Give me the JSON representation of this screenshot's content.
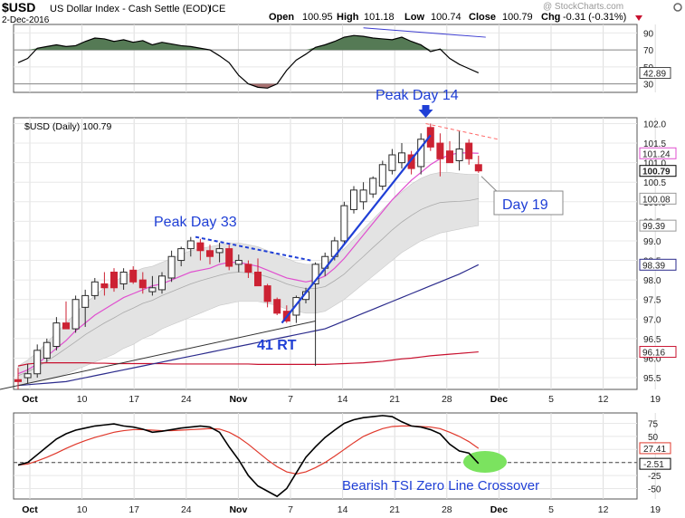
{
  "header": {
    "symbol": "$USD",
    "name": "US Dollar Index - Cash Settle (EOD)",
    "exchange": "ICE",
    "date": "2-Dec-2016",
    "watermark": "@ StockCharts.com",
    "open_label": "Open",
    "open": "100.95",
    "high_label": "High",
    "high": "101.18",
    "low_label": "Low",
    "low": "100.74",
    "close_label": "Close",
    "close": "100.79",
    "chg_label": "Chg",
    "chg": "-0.31 (-0.31%)"
  },
  "price_legend": "$USD (Daily) 100.79",
  "colors": {
    "up": "#2a2a2a",
    "down": "#cc2233",
    "ma_fast": "#e04fcf",
    "ma_mid": "#2b2b8c",
    "ma_slow": "#c8102e",
    "band": "#e3e3e3",
    "annotation": "#1f3fd6",
    "rsi_fill_up": "#557a55",
    "rsi_fill_down": "#a87070",
    "tsi": "#000000",
    "tsi_signal": "#e0392c",
    "crossover_marker": "#7be35f"
  },
  "chart_data": [
    {
      "type": "line",
      "title": "RSI",
      "y_ticks": [
        90,
        70,
        50,
        30
      ],
      "ylim": [
        20,
        100
      ],
      "reference_lines": [
        70,
        30
      ],
      "last_value_label": "42.89",
      "series": [
        {
          "values": [
            55,
            60,
            72,
            74,
            76,
            74,
            75,
            80,
            84,
            83,
            80,
            82,
            79,
            81,
            76,
            79,
            77,
            75,
            74,
            72,
            70,
            63,
            55,
            40,
            30,
            26,
            25,
            30,
            46,
            58,
            65,
            73,
            76,
            80,
            85,
            87,
            86,
            84,
            83,
            82,
            85,
            80,
            76,
            68,
            71,
            60,
            53,
            48,
            43
          ]
        }
      ],
      "annotations": [
        {
          "kind": "downtrend-line",
          "from": [
            36,
            96
          ],
          "to": [
            48,
            85
          ]
        }
      ]
    },
    {
      "type": "candlestick",
      "y_ticks": [
        102.0,
        101.5,
        101.0,
        100.5,
        100.0,
        99.5,
        99.0,
        98.5,
        98.0,
        97.5,
        97.0,
        96.5,
        96.0,
        95.5
      ],
      "ylim": [
        95.2,
        102.15
      ],
      "x_ticks": [
        "Oct",
        "10",
        "17",
        "24",
        "Nov",
        "7",
        "14",
        "21",
        "28",
        "Dec",
        "5",
        "12",
        "19"
      ],
      "bold_x_ticks": [
        "Oct",
        "Nov",
        "Dec"
      ],
      "price_labels": [
        {
          "text": "101.24",
          "value": 101.24,
          "style": "pink"
        },
        {
          "text": "100.79",
          "value": 100.79,
          "style": "black"
        },
        {
          "text": "100.08",
          "value": 100.08,
          "style": "gray"
        },
        {
          "text": "99.39",
          "value": 99.39,
          "style": "gray"
        },
        {
          "text": "98.39",
          "value": 98.39,
          "style": "navy"
        },
        {
          "text": "96.16",
          "value": 96.16,
          "style": "red"
        }
      ],
      "candles": [
        {
          "o": 95.45,
          "h": 95.75,
          "l": 95.2,
          "c": 95.4
        },
        {
          "o": 95.5,
          "h": 95.85,
          "l": 95.35,
          "c": 95.6
        },
        {
          "o": 95.6,
          "h": 96.35,
          "l": 95.5,
          "c": 96.2
        },
        {
          "o": 96.0,
          "h": 96.5,
          "l": 95.9,
          "c": 96.4
        },
        {
          "o": 96.3,
          "h": 97.05,
          "l": 96.2,
          "c": 96.9
        },
        {
          "o": 96.9,
          "h": 97.45,
          "l": 96.75,
          "c": 96.75
        },
        {
          "o": 96.75,
          "h": 97.6,
          "l": 96.65,
          "c": 97.5
        },
        {
          "o": 97.3,
          "h": 97.75,
          "l": 96.8,
          "c": 97.6
        },
        {
          "o": 97.6,
          "h": 98.05,
          "l": 97.5,
          "c": 97.95
        },
        {
          "o": 97.9,
          "h": 98.2,
          "l": 97.6,
          "c": 97.8
        },
        {
          "o": 98.2,
          "h": 98.3,
          "l": 97.7,
          "c": 97.8
        },
        {
          "o": 97.9,
          "h": 98.3,
          "l": 97.75,
          "c": 98.2
        },
        {
          "o": 98.25,
          "h": 98.35,
          "l": 97.9,
          "c": 97.95
        },
        {
          "o": 98.0,
          "h": 98.2,
          "l": 97.65,
          "c": 97.8
        },
        {
          "o": 97.7,
          "h": 98.1,
          "l": 97.6,
          "c": 97.8
        },
        {
          "o": 97.75,
          "h": 98.2,
          "l": 97.65,
          "c": 98.1
        },
        {
          "o": 98.05,
          "h": 98.75,
          "l": 97.95,
          "c": 98.6
        },
        {
          "o": 98.5,
          "h": 98.85,
          "l": 98.35,
          "c": 98.8
        },
        {
          "o": 98.8,
          "h": 99.1,
          "l": 98.6,
          "c": 99.0
        },
        {
          "o": 98.95,
          "h": 99.05,
          "l": 98.5,
          "c": 98.75
        },
        {
          "o": 98.75,
          "h": 98.9,
          "l": 98.4,
          "c": 98.6
        },
        {
          "o": 98.7,
          "h": 98.95,
          "l": 98.45,
          "c": 98.8
        },
        {
          "o": 98.8,
          "h": 98.9,
          "l": 98.25,
          "c": 98.35
        },
        {
          "o": 98.4,
          "h": 98.65,
          "l": 98.2,
          "c": 98.5
        },
        {
          "o": 98.4,
          "h": 98.5,
          "l": 98.05,
          "c": 98.2
        },
        {
          "o": 98.2,
          "h": 98.55,
          "l": 97.85,
          "c": 97.85
        },
        {
          "o": 97.85,
          "h": 97.9,
          "l": 97.3,
          "c": 97.45
        },
        {
          "o": 97.5,
          "h": 97.55,
          "l": 97.1,
          "c": 97.15
        },
        {
          "o": 97.2,
          "h": 97.35,
          "l": 96.9,
          "c": 96.95
        },
        {
          "o": 97.1,
          "h": 97.6,
          "l": 96.9,
          "c": 97.55
        },
        {
          "o": 97.5,
          "h": 97.8,
          "l": 97.4,
          "c": 97.7
        },
        {
          "o": 97.9,
          "h": 98.45,
          "l": 95.8,
          "c": 98.4
        },
        {
          "o": 98.3,
          "h": 98.7,
          "l": 98.1,
          "c": 98.6
        },
        {
          "o": 98.6,
          "h": 99.1,
          "l": 98.5,
          "c": 99.0
        },
        {
          "o": 99.0,
          "h": 100.0,
          "l": 98.9,
          "c": 99.9
        },
        {
          "o": 99.8,
          "h": 100.4,
          "l": 99.7,
          "c": 100.3
        },
        {
          "o": 100.0,
          "h": 100.5,
          "l": 99.8,
          "c": 100.3
        },
        {
          "o": 100.2,
          "h": 100.65,
          "l": 100.1,
          "c": 100.6
        },
        {
          "o": 100.4,
          "h": 101.05,
          "l": 100.3,
          "c": 100.95
        },
        {
          "o": 100.8,
          "h": 101.35,
          "l": 100.7,
          "c": 101.2
        },
        {
          "o": 101.0,
          "h": 101.5,
          "l": 100.85,
          "c": 101.25
        },
        {
          "o": 101.2,
          "h": 101.3,
          "l": 100.7,
          "c": 100.85
        },
        {
          "o": 100.9,
          "h": 101.75,
          "l": 100.7,
          "c": 101.6
        },
        {
          "o": 101.9,
          "h": 102.0,
          "l": 101.3,
          "c": 101.4
        },
        {
          "o": 101.5,
          "h": 101.75,
          "l": 100.65,
          "c": 101.1
        },
        {
          "o": 101.3,
          "h": 101.55,
          "l": 101.0,
          "c": 101.0
        },
        {
          "o": 101.05,
          "h": 101.8,
          "l": 100.8,
          "c": 101.35
        },
        {
          "o": 101.5,
          "h": 101.6,
          "l": 100.95,
          "c": 101.1
        },
        {
          "o": 100.95,
          "h": 101.18,
          "l": 100.74,
          "c": 100.79
        }
      ],
      "ma_fast": [
        95.6,
        95.7,
        95.85,
        96.05,
        96.25,
        96.45,
        96.7,
        96.9,
        97.1,
        97.25,
        97.4,
        97.55,
        97.65,
        97.75,
        97.85,
        97.9,
        98.0,
        98.1,
        98.2,
        98.25,
        98.3,
        98.4,
        98.45,
        98.45,
        98.4,
        98.35,
        98.25,
        98.15,
        98.05,
        98.0,
        97.95,
        98.0,
        98.1,
        98.3,
        98.55,
        98.85,
        99.15,
        99.45,
        99.75,
        100.05,
        100.3,
        100.55,
        100.75,
        100.95,
        101.1,
        101.2,
        101.25,
        101.25,
        101.24
      ],
      "ma_mid": [
        95.3,
        95.32,
        95.34,
        95.36,
        95.38,
        95.4,
        95.45,
        95.5,
        95.55,
        95.6,
        95.65,
        95.7,
        95.75,
        95.8,
        95.85,
        95.9,
        95.95,
        96.0,
        96.05,
        96.1,
        96.15,
        96.2,
        96.25,
        96.3,
        96.35,
        96.4,
        96.45,
        96.5,
        96.55,
        96.6,
        96.65,
        96.7,
        96.75,
        96.85,
        96.95,
        97.05,
        97.15,
        97.25,
        97.35,
        97.45,
        97.55,
        97.65,
        97.75,
        97.85,
        97.95,
        98.05,
        98.15,
        98.27,
        98.39
      ],
      "ma_slow": [
        95.8,
        95.85,
        95.87,
        95.88,
        95.88,
        95.88,
        95.88,
        95.88,
        95.87,
        95.87,
        95.86,
        95.86,
        95.86,
        95.86,
        95.86,
        95.86,
        95.85,
        95.85,
        95.85,
        95.85,
        95.85,
        95.85,
        95.85,
        95.85,
        95.85,
        95.84,
        95.84,
        95.84,
        95.84,
        95.84,
        95.84,
        95.84,
        95.84,
        95.85,
        95.86,
        95.87,
        95.88,
        95.9,
        95.92,
        95.95,
        95.98,
        96.0,
        96.03,
        96.06,
        96.08,
        96.1,
        96.12,
        96.14,
        96.16
      ],
      "band_upper": [
        95.8,
        95.95,
        96.15,
        96.4,
        96.65,
        96.9,
        97.15,
        97.4,
        97.6,
        97.8,
        97.95,
        98.1,
        98.2,
        98.3,
        98.35,
        98.45,
        98.55,
        98.65,
        98.75,
        98.8,
        98.85,
        98.9,
        98.95,
        98.95,
        98.9,
        98.85,
        98.75,
        98.65,
        98.55,
        98.45,
        98.4,
        98.4,
        98.45,
        98.6,
        98.8,
        99.05,
        99.3,
        99.55,
        99.8,
        100.05,
        100.25,
        100.45,
        100.6,
        100.7,
        100.75,
        100.75,
        100.72,
        100.7,
        100.7
      ],
      "band_lower": [
        95.3,
        95.35,
        95.4,
        95.45,
        95.5,
        95.6,
        95.7,
        95.8,
        95.9,
        96.0,
        96.1,
        96.25,
        96.35,
        96.5,
        96.6,
        96.75,
        96.85,
        96.95,
        97.05,
        97.15,
        97.25,
        97.35,
        97.4,
        97.45,
        97.45,
        97.45,
        97.4,
        97.35,
        97.25,
        97.2,
        97.15,
        97.15,
        97.2,
        97.35,
        97.5,
        97.7,
        97.9,
        98.1,
        98.3,
        98.5,
        98.7,
        98.85,
        99.0,
        99.1,
        99.2,
        99.25,
        99.3,
        99.35,
        99.39
      ],
      "band_mid": [
        95.55,
        95.65,
        95.78,
        95.92,
        96.08,
        96.25,
        96.42,
        96.6,
        96.75,
        96.9,
        97.03,
        97.17,
        97.28,
        97.4,
        97.48,
        97.6,
        97.7,
        97.8,
        97.9,
        97.98,
        98.05,
        98.12,
        98.18,
        98.2,
        98.18,
        98.15,
        98.08,
        98.0,
        97.9,
        97.83,
        97.78,
        97.78,
        97.83,
        97.98,
        98.15,
        98.38,
        98.6,
        98.83,
        99.05,
        99.28,
        99.48,
        99.65,
        99.8,
        99.9,
        99.98,
        100.0,
        100.01,
        100.03,
        100.08
      ],
      "annotations": [
        {
          "text": "Peak Day 33"
        },
        {
          "text": "Peak Day 14"
        },
        {
          "text": "41 RT"
        },
        {
          "text": "Day 19"
        }
      ]
    },
    {
      "type": "line",
      "title": "TSI",
      "y_ticks": [
        75,
        50,
        25,
        0,
        -25,
        -50
      ],
      "ylim": [
        -70,
        95
      ],
      "zero_line_label": "-2.51",
      "signal_label": "27.41",
      "annotation": "Bearish TSI Zero Line Crossover",
      "series": [
        {
          "values": [
            -5,
            0,
            15,
            30,
            45,
            55,
            62,
            66,
            70,
            72,
            74,
            70,
            68,
            64,
            58,
            60,
            63,
            66,
            68,
            70,
            68,
            58,
            30,
            5,
            -25,
            -45,
            -55,
            -65,
            -50,
            -20,
            10,
            30,
            48,
            62,
            75,
            82,
            86,
            88,
            90,
            88,
            78,
            70,
            68,
            63,
            55,
            35,
            22,
            18,
            -2
          ]
        },
        {
          "values": [
            -5,
            -3,
            3,
            10,
            18,
            27,
            35,
            42,
            48,
            53,
            58,
            61,
            63,
            63,
            62,
            61,
            61,
            62,
            63,
            64,
            65,
            64,
            58,
            48,
            35,
            20,
            5,
            -8,
            -18,
            -22,
            -18,
            -10,
            0,
            12,
            25,
            38,
            50,
            58,
            65,
            69,
            70,
            70,
            69,
            68,
            65,
            58,
            50,
            40,
            27
          ]
        }
      ]
    }
  ]
}
